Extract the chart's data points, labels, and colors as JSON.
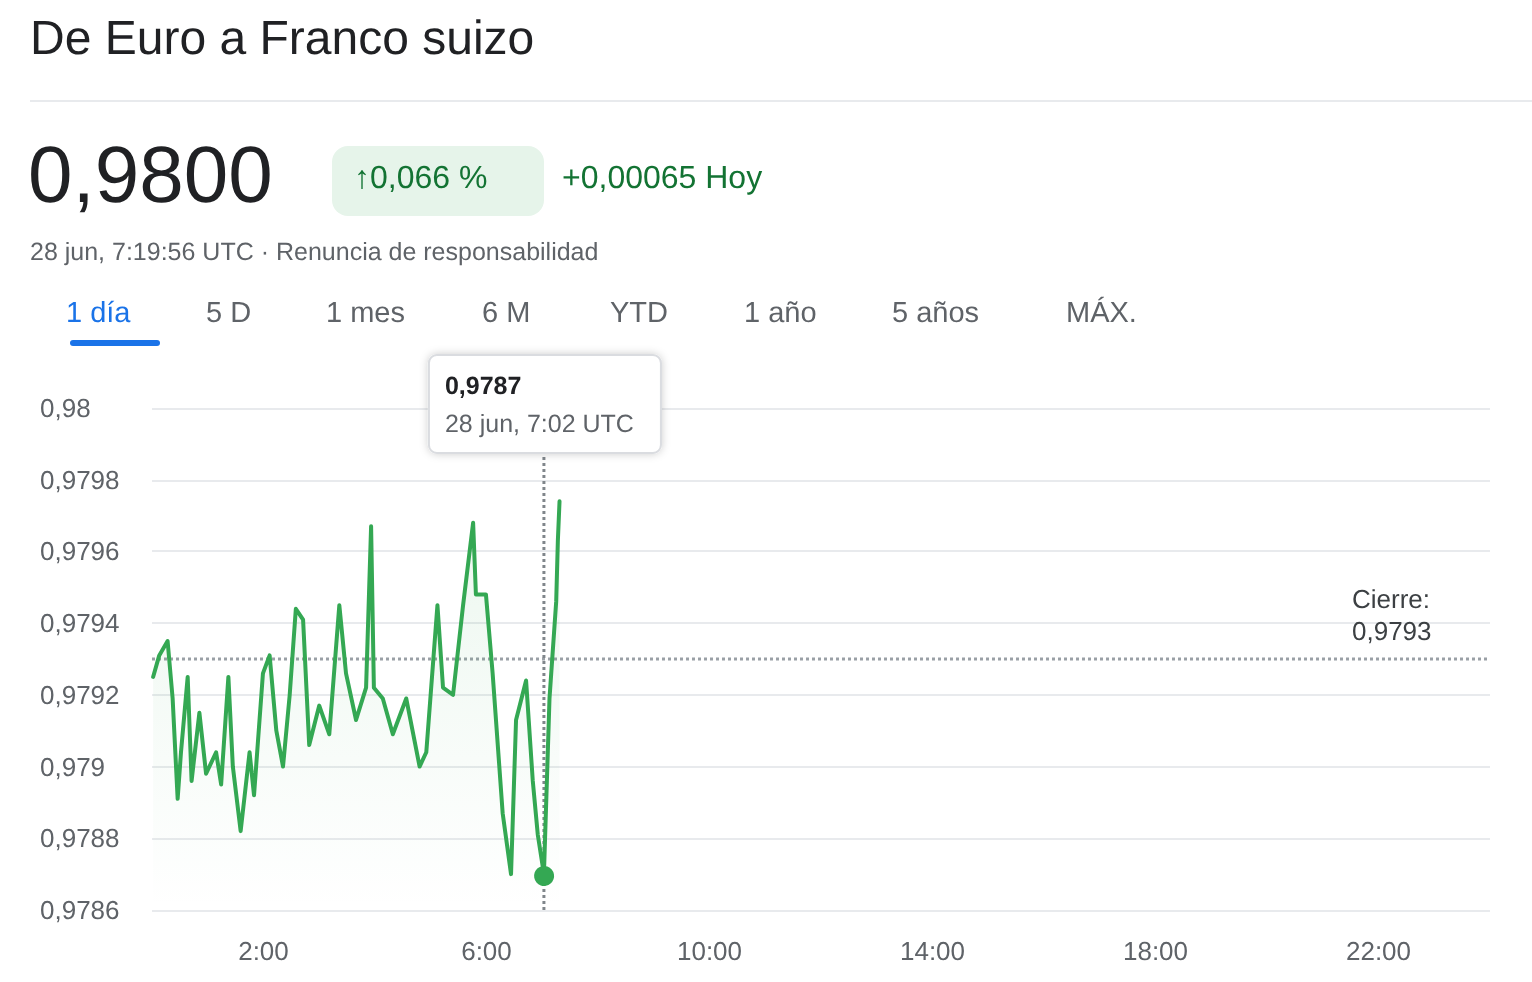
{
  "chart_data": {
    "type": "area",
    "title": "De Euro a Franco suizo",
    "annotations": [
      "0,9800",
      "↑0,066 %",
      "+0,00065 Hoy",
      "28 jun, 7:19:56 UTC · Renuncia de responsabilidad",
      "1 día",
      "5 D",
      "1 mes",
      "6 M",
      "YTD",
      "1 año",
      "5 años",
      "MÁX.",
      "0,9787",
      "28 jun, 7:02 UTC"
    ],
    "x": [
      0.02,
      0.13,
      0.28,
      0.37,
      0.46,
      0.52,
      0.64,
      0.71,
      0.85,
      0.97,
      1.15,
      1.24,
      1.37,
      1.45,
      1.59,
      1.75,
      1.83,
      1.99,
      2.11,
      2.23,
      2.35,
      2.47,
      2.58,
      2.71,
      2.82,
      3.0,
      3.18,
      3.36,
      3.48,
      3.66,
      3.84,
      3.93,
      3.98,
      4.14,
      4.32,
      4.56,
      4.8,
      4.92,
      5.12,
      5.22,
      5.4,
      5.58,
      5.76,
      5.81,
      5.99,
      6.11,
      6.29,
      6.44,
      6.53,
      6.71,
      6.83,
      6.92,
      7.03,
      7.13,
      7.25,
      7.28,
      7.31
    ],
    "series": [
      {
        "color": "#34a853",
        "values": [
          0.97925,
          0.97931,
          0.97935,
          0.97919,
          0.97891,
          0.97904,
          0.97925,
          0.97896,
          0.97915,
          0.97898,
          0.97904,
          0.97895,
          0.97925,
          0.979,
          0.97882,
          0.97904,
          0.97892,
          0.97926,
          0.97931,
          0.9791,
          0.979,
          0.9792,
          0.97944,
          0.97941,
          0.97906,
          0.97917,
          0.97909,
          0.97945,
          0.97926,
          0.97913,
          0.97922,
          0.97967,
          0.97922,
          0.97919,
          0.97909,
          0.97919,
          0.979,
          0.97904,
          0.97945,
          0.97922,
          0.9792,
          0.97945,
          0.97968,
          0.97948,
          0.97948,
          0.97926,
          0.97887,
          0.9787,
          0.97913,
          0.97924,
          0.97896,
          0.97881,
          0.9787,
          0.97919,
          0.97946,
          0.97963,
          0.97974
        ]
      }
    ],
    "xlim": [
      0,
      24
    ],
    "xticks": [
      {
        "value": 2,
        "label": "2:00"
      },
      {
        "value": 6,
        "label": "6:00"
      },
      {
        "value": 10,
        "label": "10:00"
      },
      {
        "value": 14,
        "label": "14:00"
      },
      {
        "value": 18,
        "label": "18:00"
      },
      {
        "value": 22,
        "label": "22:00"
      }
    ],
    "ylim": [
      0.9786,
      0.98
    ],
    "yticks": [
      {
        "value": 0.9786,
        "label": "0,9786"
      },
      {
        "value": 0.9788,
        "label": "0,9788"
      },
      {
        "value": 0.979,
        "label": "0,979"
      },
      {
        "value": 0.9792,
        "label": "0,9792"
      },
      {
        "value": 0.9794,
        "label": "0,9794"
      },
      {
        "value": 0.9796,
        "label": "0,9796"
      },
      {
        "value": 0.9798,
        "label": "0,9798"
      },
      {
        "value": 0.98,
        "label": "0,98"
      }
    ],
    "ref_lines": [
      {
        "axis": "y",
        "value": 0.9793,
        "label": "Cierre:\n0,9793",
        "color": "#9aa0a6",
        "line_style": "dotted"
      },
      {
        "axis": "x",
        "value": 7.03,
        "color": "#80868b",
        "line_style": "dotted"
      }
    ],
    "grid": "y",
    "marker": "none",
    "line_style": "solid"
  }
}
